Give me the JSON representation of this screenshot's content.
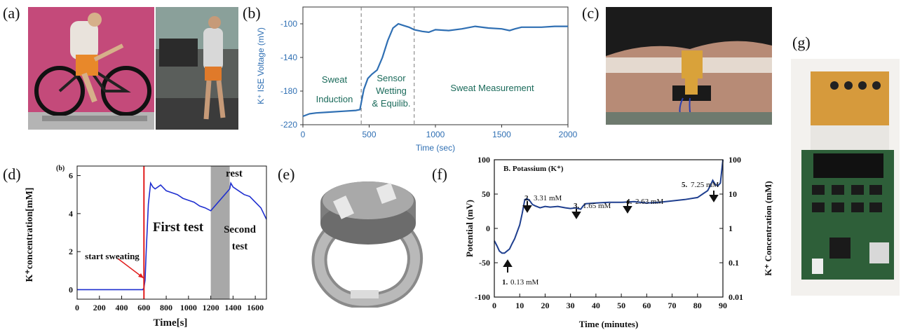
{
  "labels": {
    "a": "(a)",
    "b": "(b)",
    "c": "(c)",
    "d": "(d)",
    "e": "(e)",
    "f": "(f)",
    "g": "(g)"
  },
  "colors": {
    "line_blue": "#2f6fb3",
    "dark_blue": "#1f3f8f",
    "red": "#e11d1d",
    "rest_gray": "#a8a8a8",
    "annot_green": "#1a6a5a"
  },
  "chart_data": [
    {
      "panel": "b",
      "type": "line",
      "xlabel": "Time (sec)",
      "ylabel": "K⁺ ISE Voltage (mV)",
      "xlim": [
        0,
        2000
      ],
      "ylim": [
        -220,
        -80
      ],
      "xticks": [
        0,
        500,
        1000,
        1500,
        2000
      ],
      "yticks": [
        -100,
        -140,
        -180,
        -220
      ],
      "vlines": [
        440,
        840
      ],
      "annotations": [
        "Sweat",
        "Induction",
        "Sensor",
        "Wetting",
        "& Equilib.",
        "Sweat Measurement"
      ],
      "x": [
        0,
        50,
        100,
        200,
        300,
        400,
        430,
        460,
        490,
        520,
        560,
        600,
        640,
        680,
        720,
        760,
        800,
        840,
        900,
        950,
        1000,
        1100,
        1200,
        1300,
        1400,
        1500,
        1560,
        1600,
        1650,
        1700,
        1800,
        1900,
        2000
      ],
      "y": [
        -210,
        -207,
        -206,
        -205,
        -204,
        -203,
        -202,
        -178,
        -165,
        -160,
        -155,
        -140,
        -120,
        -105,
        -100,
        -102,
        -104,
        -107,
        -109,
        -110,
        -107,
        -108,
        -106,
        -103,
        -105,
        -106,
        -108,
        -106,
        -104,
        -104,
        -104,
        -103,
        -103
      ]
    },
    {
      "panel": "d",
      "type": "line",
      "panel_tag": "(b)",
      "xlabel": "Time[s]",
      "ylabel": "K⁺concentration[mM]",
      "xlim": [
        0,
        1700
      ],
      "ylim": [
        -0.5,
        6.5
      ],
      "xticks": [
        0,
        200,
        400,
        600,
        800,
        1000,
        1200,
        1400,
        1600
      ],
      "yticks": [
        0,
        2,
        4,
        6
      ],
      "red_line_x": 600,
      "rest_band": [
        1200,
        1370
      ],
      "annotations": [
        "rest",
        "First test",
        "Second",
        "test",
        "start sweating"
      ],
      "x": [
        0,
        100,
        200,
        300,
        400,
        500,
        590,
        600,
        610,
        620,
        640,
        660,
        680,
        700,
        750,
        800,
        850,
        900,
        950,
        1000,
        1050,
        1100,
        1150,
        1200,
        1370,
        1380,
        1400,
        1450,
        1500,
        1550,
        1600,
        1650,
        1700
      ],
      "y": [
        0,
        0,
        0,
        0,
        0,
        0,
        0,
        0.1,
        0.5,
        2.0,
        4.5,
        5.6,
        5.4,
        5.3,
        5.5,
        5.2,
        5.1,
        5.0,
        4.8,
        4.7,
        4.6,
        4.4,
        4.3,
        4.15,
        5.3,
        5.6,
        5.4,
        5.2,
        5.0,
        4.9,
        4.6,
        4.3,
        3.7
      ]
    },
    {
      "panel": "f",
      "type": "line",
      "title": "B. Potassium  (K⁺)",
      "xlabel": "Time (minutes)",
      "ylabel": "Potential (mV)",
      "ylabel_right": "K⁺ Concentration (mM)",
      "xlim": [
        0,
        90
      ],
      "ylim": [
        -100,
        100
      ],
      "xticks": [
        0,
        10,
        20,
        30,
        40,
        50,
        60,
        70,
        80,
        90
      ],
      "yticks": [
        100,
        50,
        0,
        -50,
        -100
      ],
      "yticks_right": [
        "100",
        "10",
        "1",
        "0.1",
        "0.01"
      ],
      "annotations": [
        {
          "num": "1.",
          "text": "0.13 mM"
        },
        {
          "num": "2.",
          "text": "3.31 mM"
        },
        {
          "num": "3.",
          "text": "1.65 mM"
        },
        {
          "num": "4.",
          "text": "2.63 mM"
        },
        {
          "num": "5.",
          "text": "7.25 mM"
        }
      ],
      "x": [
        0,
        1,
        2,
        3,
        4,
        5,
        6,
        7,
        8,
        9,
        10,
        11,
        12,
        13,
        14,
        15,
        16,
        18,
        20,
        22,
        25,
        28,
        30,
        32,
        34,
        35,
        36,
        40,
        45,
        50,
        55,
        60,
        65,
        70,
        75,
        80,
        82,
        84,
        85,
        86,
        87,
        88,
        89,
        90
      ],
      "y": [
        -18,
        -25,
        -33,
        -36,
        -36,
        -33,
        -30,
        -22,
        -15,
        -5,
        5,
        22,
        42,
        43,
        40,
        35,
        33,
        30,
        32,
        31,
        32,
        30,
        29,
        30,
        28,
        33,
        36,
        37,
        38,
        38,
        39,
        37,
        38,
        40,
        42,
        45,
        50,
        55,
        62,
        70,
        64,
        62,
        66,
        100
      ]
    }
  ]
}
